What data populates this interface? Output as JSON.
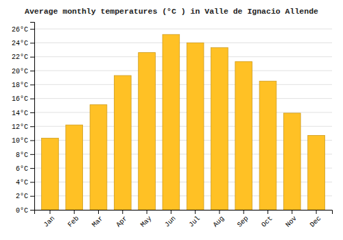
{
  "chart_data": {
    "type": "bar",
    "title": "Average monthly temperatures (°C ) in Valle de Ignacio Allende",
    "categories": [
      "Jan",
      "Feb",
      "Mar",
      "Apr",
      "May",
      "Jun",
      "Jul",
      "Aug",
      "Sep",
      "Oct",
      "Nov",
      "Dec"
    ],
    "values": [
      10.3,
      12.2,
      15.1,
      19.3,
      22.6,
      25.2,
      24.0,
      23.3,
      21.3,
      18.5,
      13.9,
      10.7
    ],
    "color": "#FFC125",
    "ylim": [
      0,
      27
    ],
    "yticks": [
      {
        "value": 0,
        "label": "0°C"
      },
      {
        "value": 2,
        "label": "2°C"
      },
      {
        "value": 4,
        "label": "4°C"
      },
      {
        "value": 6,
        "label": "6°C"
      },
      {
        "value": 8,
        "label": "8°C"
      },
      {
        "value": 10,
        "label": "10°C"
      },
      {
        "value": 12,
        "label": "12°C"
      },
      {
        "value": 14,
        "label": "14°C"
      },
      {
        "value": 16,
        "label": "16°C"
      },
      {
        "value": 18,
        "label": "18°C"
      },
      {
        "value": 20,
        "label": "20°C"
      },
      {
        "value": 22,
        "label": "22°C"
      },
      {
        "value": 24,
        "label": "24°C"
      },
      {
        "value": 26,
        "label": "26°C"
      }
    ],
    "grid": true
  }
}
